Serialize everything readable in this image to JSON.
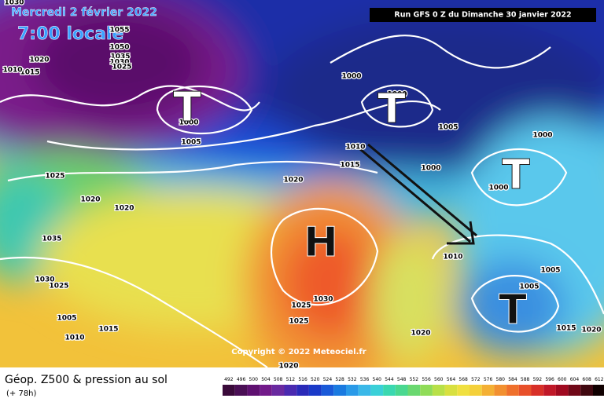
{
  "header": {
    "date": "Mercredi 2 février 2022",
    "time": "7:00 locale",
    "run": "Run GFS 0 Z du Dimanche 30 janvier 2022"
  },
  "isobars": [
    "1030",
    "1055",
    "1050",
    "1035",
    "1030",
    "1025",
    "1020",
    "1015",
    "1010",
    "1000",
    "1000",
    "1000",
    "1005",
    "1005",
    "1000",
    "1010",
    "1015",
    "1000",
    "1000",
    "1025",
    "1020",
    "1020",
    "1020",
    "1035",
    "1010",
    "1005",
    "1005",
    "1030",
    "1025",
    "1030",
    "1025",
    "1025",
    "1005",
    "1015",
    "1010",
    "1015",
    "1020",
    "1020",
    "1020"
  ],
  "systems": [
    "T",
    "T",
    "T",
    "H",
    "T"
  ],
  "copyright": "Copyright © 2022 Meteociel.fr",
  "legend": {
    "title": "Géop. Z500 & pression au sol",
    "lead": "(+ 78h)",
    "scale": [
      492,
      496,
      500,
      504,
      508,
      512,
      516,
      520,
      524,
      528,
      532,
      536,
      540,
      544,
      548,
      552,
      556,
      560,
      564,
      568,
      572,
      576,
      580,
      584,
      588,
      592,
      596,
      600,
      604,
      608,
      612
    ]
  }
}
